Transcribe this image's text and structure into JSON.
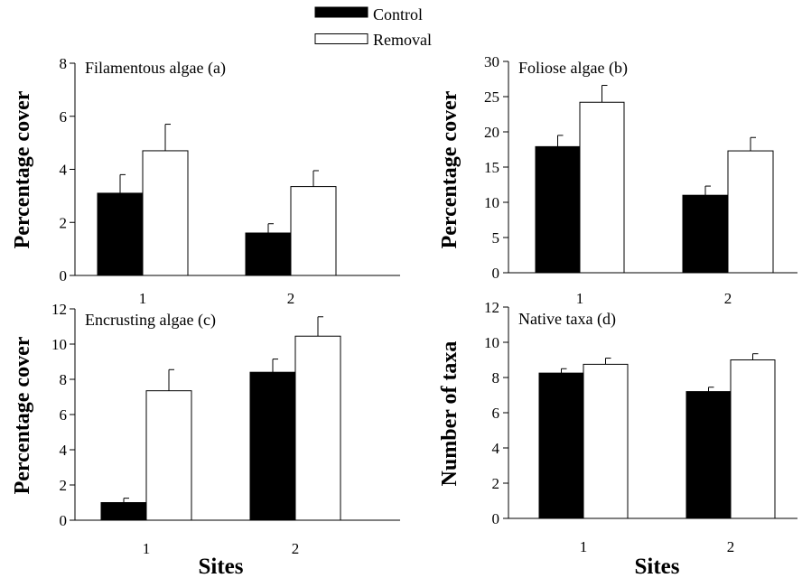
{
  "legend": {
    "position": "top-center",
    "items": [
      {
        "label": "Control",
        "color": "#000000"
      },
      {
        "label": "Removal",
        "color": "#ffffff"
      }
    ]
  },
  "colors": {
    "control": "#000000",
    "removal": "#ffffff",
    "axis": "#000000"
  },
  "chart_data": [
    {
      "type": "bar",
      "title": "Filamentous algae (a)",
      "ylabel": "Percentage cover",
      "xlabel": "",
      "categories": [
        "1",
        "2"
      ],
      "ylim": [
        0,
        8
      ],
      "yticks": [
        0,
        2,
        4,
        6,
        8
      ],
      "series": [
        {
          "name": "Control",
          "values": [
            3.1,
            1.6
          ],
          "errors": [
            0.7,
            0.35
          ]
        },
        {
          "name": "Removal",
          "values": [
            4.7,
            3.35
          ],
          "errors": [
            1.0,
            0.6
          ]
        }
      ]
    },
    {
      "type": "bar",
      "title": "Foliose algae (b)",
      "ylabel": "Percentage cover",
      "xlabel": "",
      "categories": [
        "1",
        "2"
      ],
      "ylim": [
        0,
        30
      ],
      "yticks": [
        0,
        5,
        10,
        15,
        20,
        25,
        30
      ],
      "series": [
        {
          "name": "Control",
          "values": [
            17.9,
            11.0
          ],
          "errors": [
            1.6,
            1.3
          ]
        },
        {
          "name": "Removal",
          "values": [
            24.2,
            17.3
          ],
          "errors": [
            2.4,
            1.9
          ]
        }
      ]
    },
    {
      "type": "bar",
      "title": "Encrusting algae (c)",
      "ylabel": "Percentage cover",
      "xlabel": "Sites",
      "categories": [
        "1",
        "2"
      ],
      "ylim": [
        0,
        12
      ],
      "yticks": [
        0,
        2,
        4,
        6,
        8,
        10,
        12
      ],
      "series": [
        {
          "name": "Control",
          "values": [
            1.0,
            8.4
          ],
          "errors": [
            0.25,
            0.75
          ]
        },
        {
          "name": "Removal",
          "values": [
            7.35,
            10.45
          ],
          "errors": [
            1.2,
            1.1
          ]
        }
      ]
    },
    {
      "type": "bar",
      "title": "Native taxa (d)",
      "ylabel": "Number of taxa",
      "xlabel": "Sites",
      "categories": [
        "1",
        "2"
      ],
      "ylim": [
        0,
        12
      ],
      "yticks": [
        0,
        2,
        4,
        6,
        8,
        10,
        12
      ],
      "series": [
        {
          "name": "Control",
          "values": [
            8.25,
            7.2
          ],
          "errors": [
            0.25,
            0.25
          ]
        },
        {
          "name": "Removal",
          "values": [
            8.75,
            9.0
          ],
          "errors": [
            0.35,
            0.35
          ]
        }
      ]
    }
  ]
}
